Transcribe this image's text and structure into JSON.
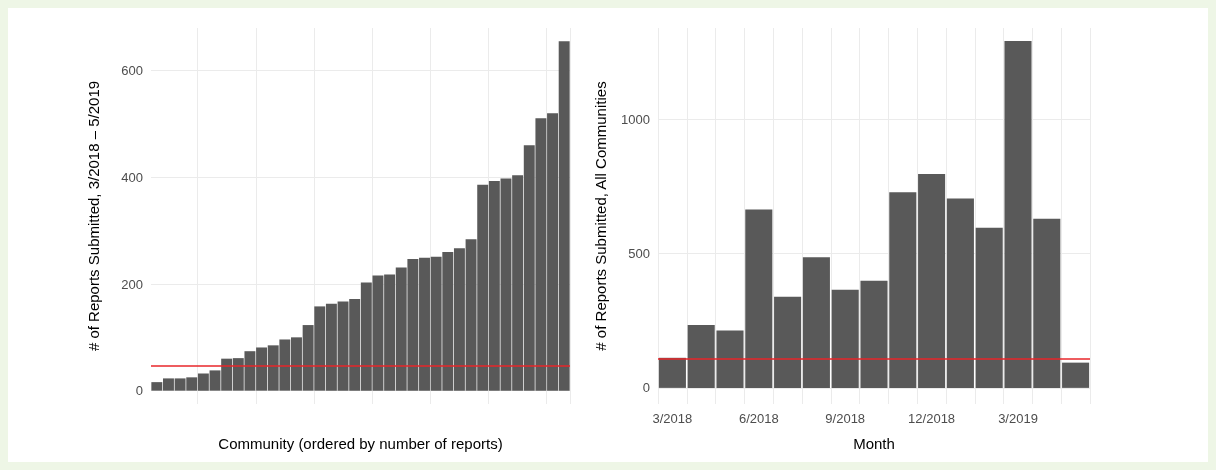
{
  "chart_data": [
    {
      "type": "bar",
      "xlabel": "Community (ordered by number of reports)",
      "ylabel": "# of Reports Submitted, 3/2018 – 5/2019",
      "categories": [
        null,
        null,
        null,
        null,
        null,
        null,
        null,
        null,
        null,
        null,
        null,
        null,
        null,
        null,
        null,
        null,
        null,
        null,
        null,
        null,
        null,
        null,
        null,
        null,
        null,
        null,
        null,
        null,
        null,
        null,
        null,
        null,
        null,
        null,
        null,
        null
      ],
      "values": [
        16,
        23,
        23,
        25,
        32,
        38,
        60,
        61,
        74,
        81,
        85,
        96,
        100,
        123,
        158,
        163,
        167,
        172,
        203,
        216,
        218,
        231,
        247,
        249,
        251,
        260,
        267,
        284,
        386,
        393,
        398,
        404,
        460,
        511,
        520,
        655
      ],
      "color": "#595959",
      "ylim": [
        -25,
        680
      ],
      "yticks": [
        0,
        200,
        400,
        600
      ],
      "grid": true,
      "tick_labels": "y",
      "ref_lines": [
        {
          "axis": "y",
          "value": 46,
          "color": "#e8262a"
        }
      ]
    },
    {
      "type": "bar",
      "xlabel": "Month",
      "ylabel": "# of Reports Submitted, All Communities",
      "categories": [
        "3/2018",
        null,
        null,
        "6/2018",
        null,
        null,
        "9/2018",
        null,
        null,
        "12/2018",
        null,
        null,
        "3/2019",
        null,
        null
      ],
      "values": [
        112,
        234,
        214,
        664,
        339,
        486,
        365,
        399,
        728,
        796,
        705,
        596,
        1292,
        630,
        94
      ],
      "color": "#595959",
      "ylim": [
        -60,
        1340
      ],
      "yticks": [
        0,
        500,
        1000
      ],
      "grid": true,
      "ref_lines": [
        {
          "axis": "y",
          "value": 108,
          "color": "#e8262a"
        }
      ]
    }
  ]
}
